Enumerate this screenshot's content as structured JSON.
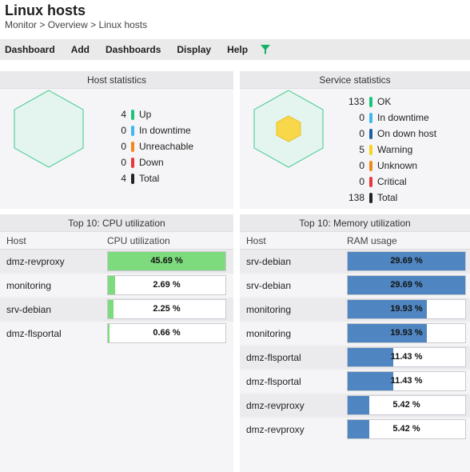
{
  "header": {
    "title": "Linux hosts",
    "breadcrumb": [
      "Monitor",
      "Overview",
      "Linux hosts"
    ],
    "separator": ">"
  },
  "menu": {
    "items": [
      "Dashboard",
      "Add",
      "Dashboards",
      "Display",
      "Help"
    ],
    "filter_icon": "filter-icon",
    "filter_color": "#17b26a"
  },
  "host_stats": {
    "title": "Host statistics",
    "rows": [
      {
        "count": "4",
        "label": "Up",
        "color": "#1bc47d"
      },
      {
        "count": "0",
        "label": "In downtime",
        "color": "#3fb7f0"
      },
      {
        "count": "0",
        "label": "Unreachable",
        "color": "#f0891a"
      },
      {
        "count": "0",
        "label": "Down",
        "color": "#e8383b"
      },
      {
        "count": "4",
        "label": "Total",
        "color": "#222222"
      }
    ]
  },
  "service_stats": {
    "title": "Service statistics",
    "rows": [
      {
        "count": "133",
        "label": "OK",
        "color": "#1bc47d"
      },
      {
        "count": "0",
        "label": "In downtime",
        "color": "#3fb7f0"
      },
      {
        "count": "0",
        "label": "On down host",
        "color": "#1c5fa8"
      },
      {
        "count": "5",
        "label": "Warning",
        "color": "#f7d21f"
      },
      {
        "count": "0",
        "label": "Unknown",
        "color": "#f0891a"
      },
      {
        "count": "0",
        "label": "Critical",
        "color": "#e8383b"
      },
      {
        "count": "138",
        "label": "Total",
        "color": "#222222"
      }
    ]
  },
  "cpu": {
    "title": "Top 10: CPU utilization",
    "col_host": "Host",
    "col_value": "CPU utilization",
    "fill_color": "#7ddb7d",
    "rows": [
      {
        "host": "dmz-revproxy",
        "value": 45.69,
        "label": "45.69 %"
      },
      {
        "host": "monitoring",
        "value": 2.69,
        "label": "2.69 %"
      },
      {
        "host": "srv-debian",
        "value": 2.25,
        "label": "2.25 %"
      },
      {
        "host": "dmz-flsportal",
        "value": 0.66,
        "label": "0.66 %"
      }
    ],
    "max": 45.69
  },
  "mem": {
    "title": "Top 10: Memory utilization",
    "col_host": "Host",
    "col_value": "RAM usage",
    "fill_color": "#4f86c1",
    "rows": [
      {
        "host": "srv-debian",
        "value": 29.69,
        "label": "29.69 %"
      },
      {
        "host": "srv-debian",
        "value": 29.69,
        "label": "29.69 %"
      },
      {
        "host": "monitoring",
        "value": 19.93,
        "label": "19.93 %"
      },
      {
        "host": "monitoring",
        "value": 19.93,
        "label": "19.93 %"
      },
      {
        "host": "dmz-flsportal",
        "value": 11.43,
        "label": "11.43 %"
      },
      {
        "host": "dmz-flsportal",
        "value": 11.43,
        "label": "11.43 %"
      },
      {
        "host": "dmz-revproxy",
        "value": 5.42,
        "label": "5.42 %"
      },
      {
        "host": "dmz-revproxy",
        "value": 5.42,
        "label": "5.42 %"
      }
    ],
    "max": 29.69
  }
}
